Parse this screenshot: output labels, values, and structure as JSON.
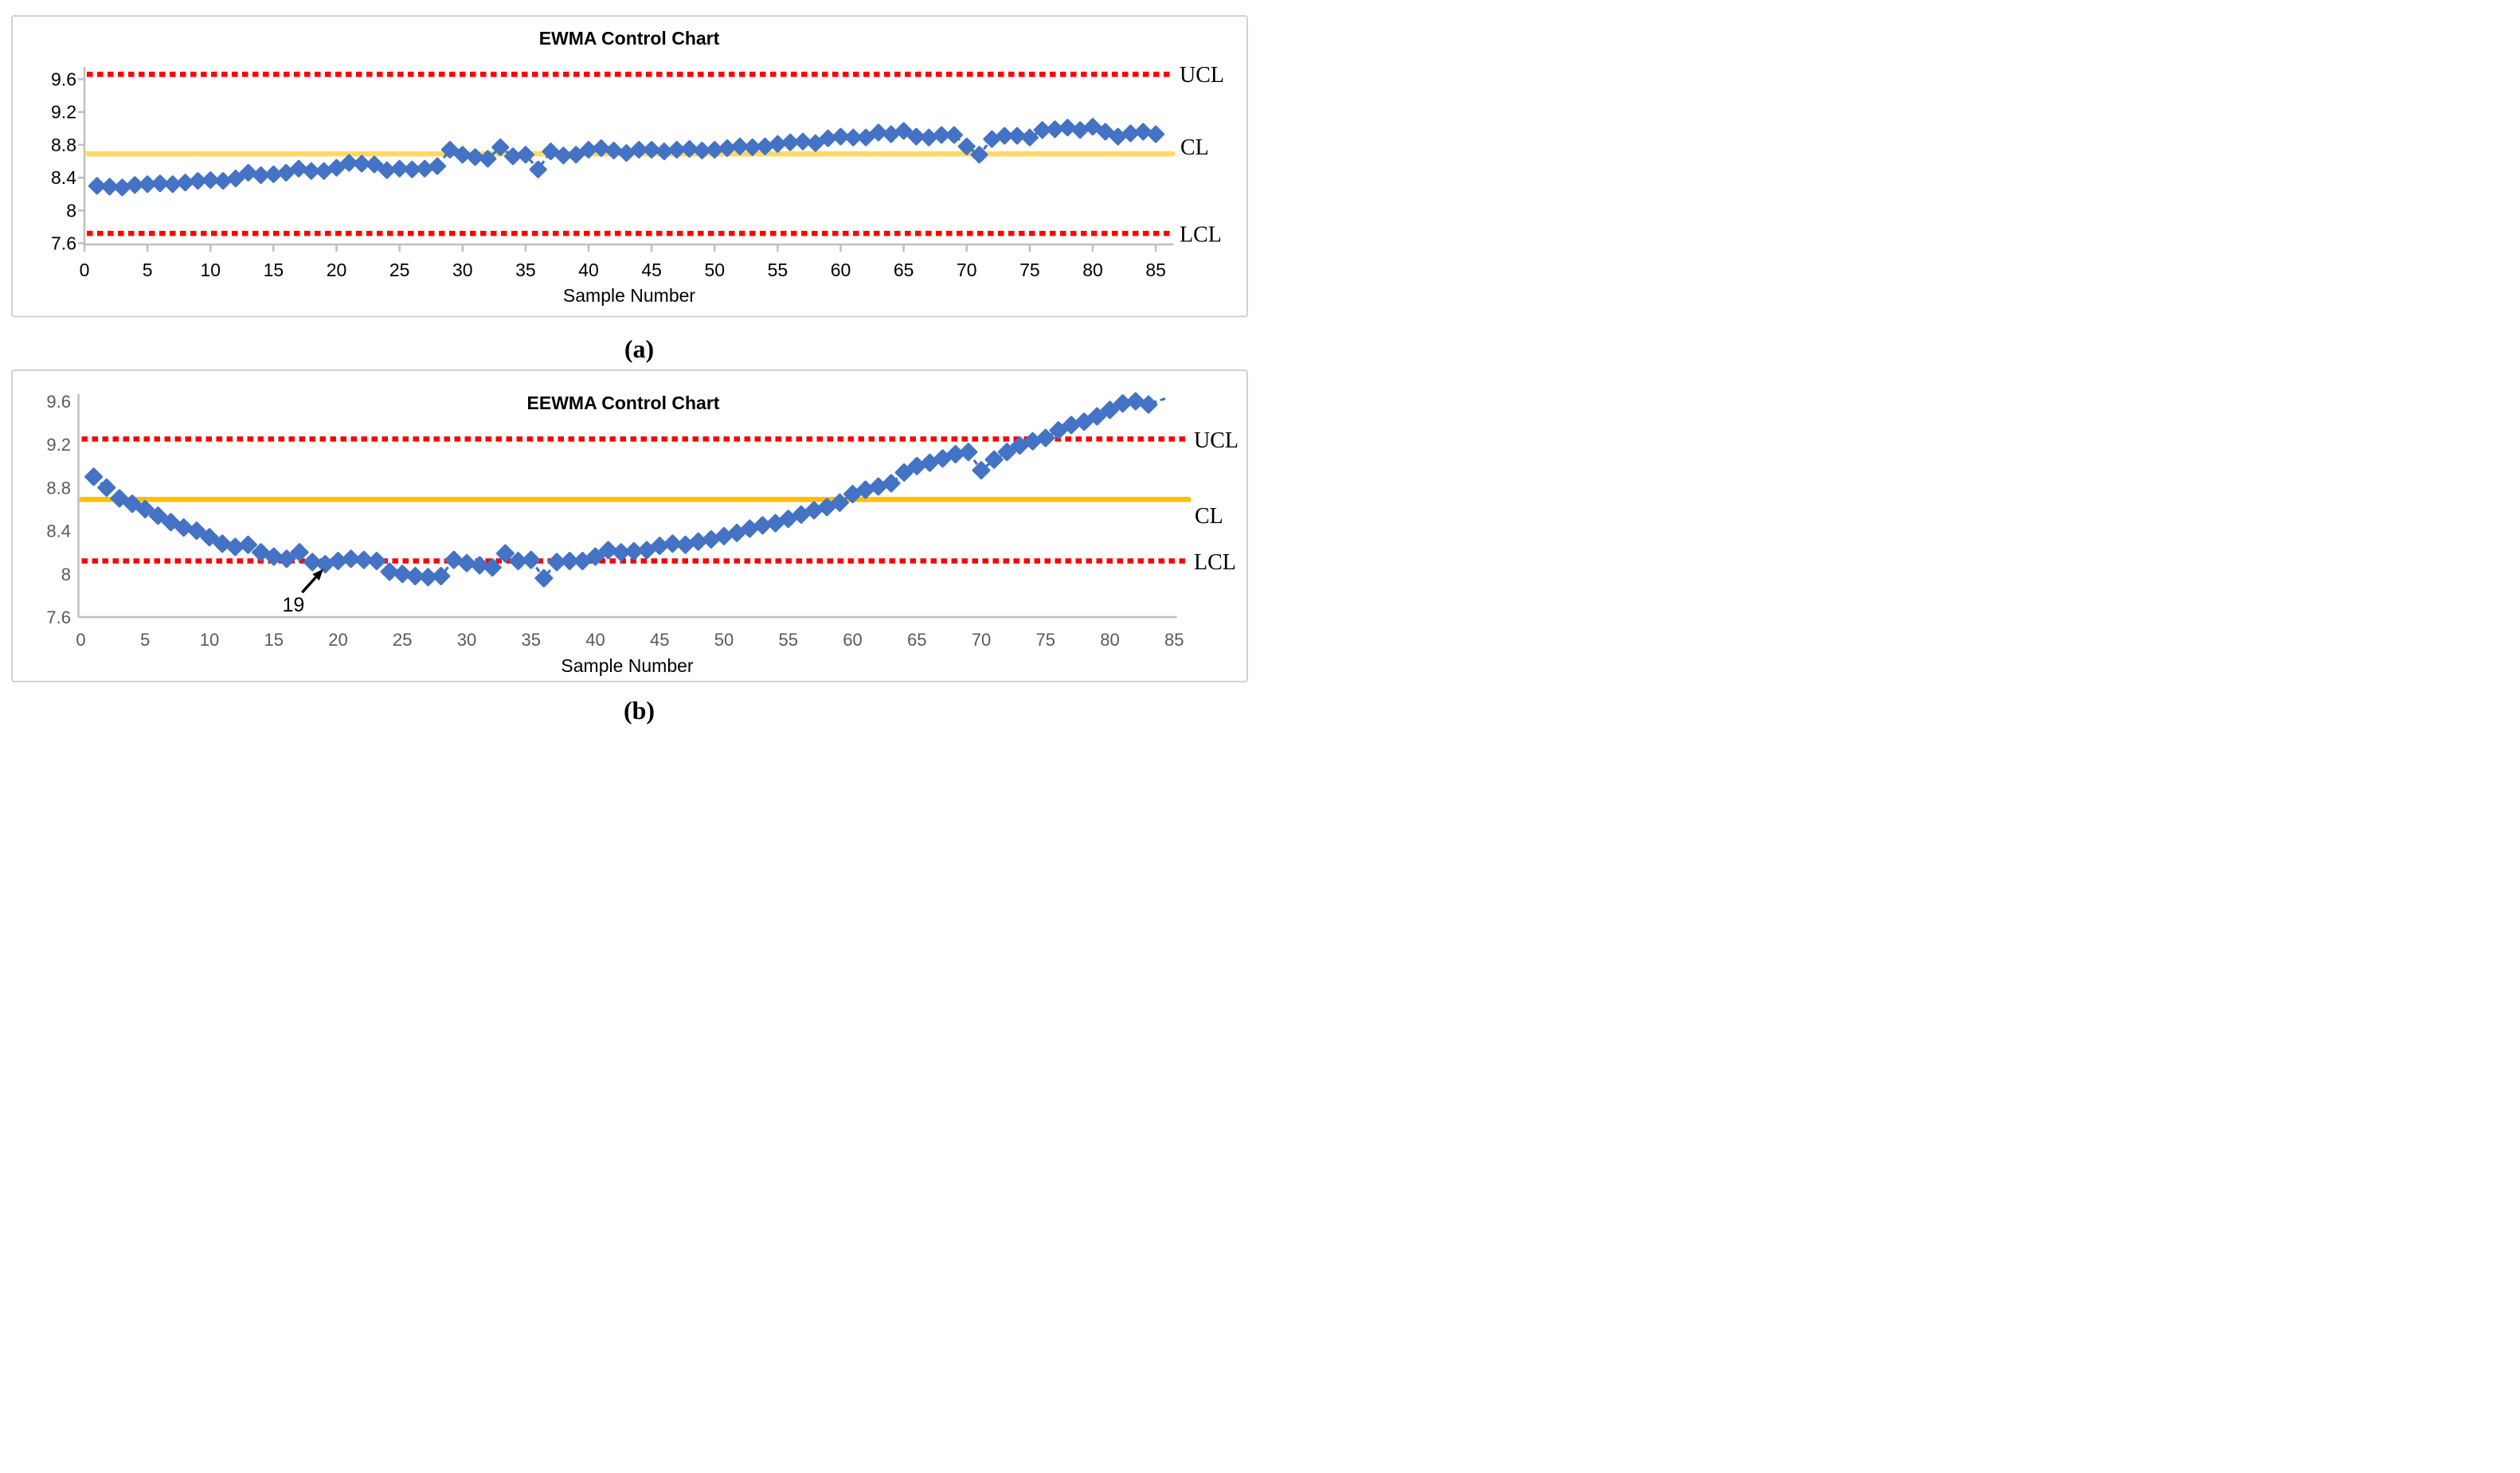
{
  "figure": {
    "background": "#ffffff",
    "box_border_color": "#d2d2d2",
    "axis_color": "#bfbfbf"
  },
  "captions": {
    "a": "(a)",
    "b": "(b)"
  },
  "chart_data": [
    {
      "id": "ewma",
      "type": "line",
      "title": "EWMA Control Chart",
      "xlabel": "Sample Number",
      "marker": "diamond",
      "x_start": 1,
      "values": [
        8.3,
        8.29,
        8.28,
        8.31,
        8.32,
        8.33,
        8.32,
        8.34,
        8.36,
        8.37,
        8.36,
        8.39,
        8.46,
        8.43,
        8.44,
        8.46,
        8.51,
        8.48,
        8.48,
        8.52,
        8.58,
        8.57,
        8.56,
        8.49,
        8.51,
        8.5,
        8.51,
        8.54,
        8.74,
        8.68,
        8.65,
        8.63,
        8.77,
        8.66,
        8.68,
        8.5,
        8.72,
        8.67,
        8.68,
        8.74,
        8.76,
        8.73,
        8.7,
        8.74,
        8.74,
        8.72,
        8.74,
        8.75,
        8.73,
        8.74,
        8.76,
        8.78,
        8.77,
        8.78,
        8.81,
        8.83,
        8.84,
        8.82,
        8.88,
        8.9,
        8.89,
        8.89,
        8.95,
        8.93,
        8.97,
        8.9,
        8.89,
        8.92,
        8.92,
        8.78,
        8.68,
        8.87,
        8.91,
        8.91,
        8.89,
        8.98,
        8.99,
        9.01,
        8.98,
        9.02,
        8.96,
        8.9,
        8.94,
        8.96,
        8.93
      ],
      "limits": {
        "UCL": 9.66,
        "CL": 8.69,
        "LCL": 7.72
      },
      "limit_labels": {
        "UCL": "UCL",
        "CL": "CL",
        "LCL": "LCL"
      },
      "xlim": [
        0,
        85
      ],
      "ylim": [
        7.6,
        9.8
      ],
      "x_ticks": [
        0,
        5,
        10,
        15,
        20,
        25,
        30,
        35,
        40,
        45,
        50,
        55,
        60,
        65,
        70,
        75,
        80,
        85
      ],
      "y_ticks": [
        9.6,
        9.2,
        8.8,
        8.4,
        8.0,
        7.6
      ],
      "y_tick_labels": [
        "9.6",
        "9.2",
        "8.8",
        "8.4",
        "8",
        "7.6"
      ],
      "grid": false,
      "legend": "none",
      "colors": {
        "series": "#4472c4",
        "connector": "#3a6fbf",
        "limit": "#ff0000",
        "center": "#ffd966",
        "tick_text": "#000000",
        "title_text": "#000000"
      },
      "annotation": null,
      "tail_dash": false
    },
    {
      "id": "eewma",
      "type": "line",
      "title": "EEWMA Control Chart",
      "xlabel": "Sample Number",
      "marker": "diamond",
      "x_start": 1,
      "values": [
        8.9,
        8.8,
        8.7,
        8.65,
        8.6,
        8.54,
        8.48,
        8.43,
        8.4,
        8.34,
        8.28,
        8.25,
        8.27,
        8.2,
        8.16,
        8.14,
        8.2,
        8.11,
        8.09,
        8.12,
        8.14,
        8.13,
        8.12,
        8.02,
        8.0,
        7.98,
        7.97,
        7.98,
        8.13,
        8.1,
        8.08,
        8.06,
        8.19,
        8.12,
        8.13,
        7.96,
        8.11,
        8.12,
        8.12,
        8.16,
        8.22,
        8.2,
        8.21,
        8.22,
        8.26,
        8.28,
        8.27,
        8.3,
        8.32,
        8.35,
        8.38,
        8.42,
        8.45,
        8.47,
        8.51,
        8.55,
        8.59,
        8.62,
        8.66,
        8.74,
        8.78,
        8.81,
        8.84,
        8.94,
        9.0,
        9.03,
        9.07,
        9.11,
        9.13,
        8.96,
        9.06,
        9.13,
        9.19,
        9.23,
        9.26,
        9.33,
        9.38,
        9.41,
        9.46,
        9.52,
        9.58,
        9.6,
        9.57
      ],
      "limits": {
        "UCL": 9.25,
        "CL": 8.69,
        "LCL": 8.12
      },
      "limit_labels": {
        "UCL": "UCL",
        "CL": "CL",
        "LCL": "LCL"
      },
      "xlim": [
        0,
        85
      ],
      "ylim": [
        7.6,
        9.7
      ],
      "x_ticks": [
        0,
        5,
        10,
        15,
        20,
        25,
        30,
        35,
        40,
        45,
        50,
        55,
        60,
        65,
        70,
        75,
        80,
        85
      ],
      "y_ticks": [
        9.6,
        9.2,
        8.8,
        8.4,
        8.0,
        7.6
      ],
      "y_tick_labels": [
        "9.6",
        "9.2",
        "8.8",
        "8.4",
        "8",
        "7.6"
      ],
      "grid": false,
      "legend": "none",
      "colors": {
        "series": "#4472c4",
        "connector": "#3a6fbf",
        "limit": "#ff0000",
        "center": "#ffc000",
        "tick_text": "#595959",
        "title_text": "#000000"
      },
      "annotation": {
        "text": "19",
        "point_index": 19
      },
      "tail_dash": true
    }
  ]
}
